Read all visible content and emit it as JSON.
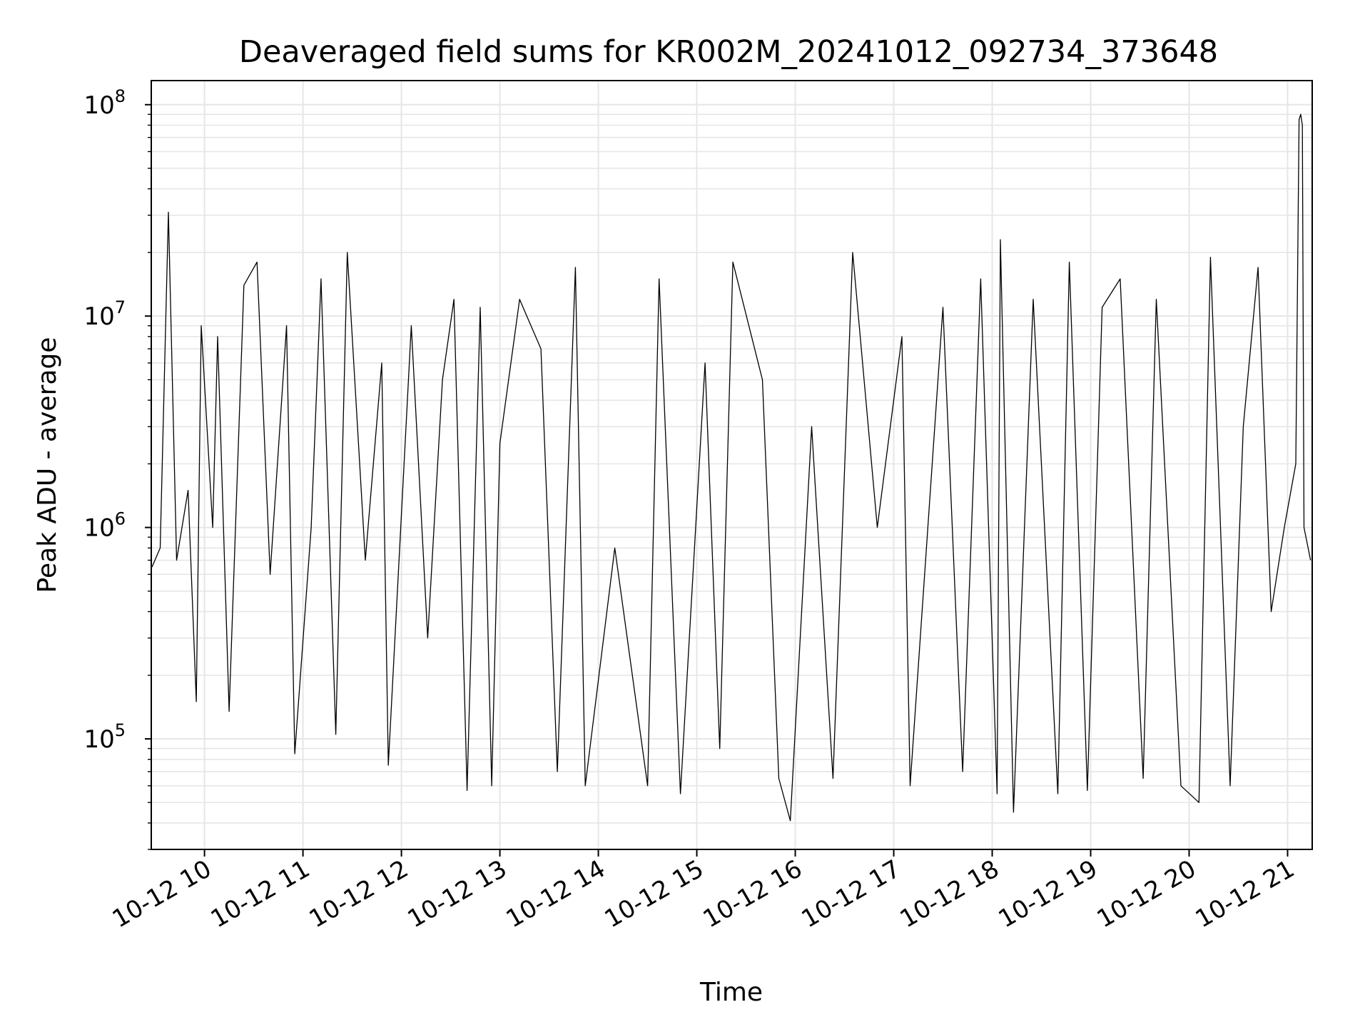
{
  "chart_data": {
    "type": "line",
    "title": "Deaveraged field sums for KR002M_20241012_092734_373648",
    "xlabel": "Time",
    "ylabel": "Peak ADU - average",
    "x_range": [
      "2024-10-12T09:27:34",
      "2024-10-12T21:15:00"
    ],
    "y_scale": "log",
    "ylim": [
      30000,
      130000000
    ],
    "grid": true,
    "line_color": "#000000",
    "grid_color": "#e6e6e6",
    "x_ticks": [
      {
        "value": "2024-10-12T10:00",
        "label": "10-12 10"
      },
      {
        "value": "2024-10-12T11:00",
        "label": "10-12 11"
      },
      {
        "value": "2024-10-12T12:00",
        "label": "10-12 12"
      },
      {
        "value": "2024-10-12T13:00",
        "label": "10-12 13"
      },
      {
        "value": "2024-10-12T14:00",
        "label": "10-12 14"
      },
      {
        "value": "2024-10-12T15:00",
        "label": "10-12 15"
      },
      {
        "value": "2024-10-12T16:00",
        "label": "10-12 16"
      },
      {
        "value": "2024-10-12T17:00",
        "label": "10-12 17"
      },
      {
        "value": "2024-10-12T18:00",
        "label": "10-12 18"
      },
      {
        "value": "2024-10-12T19:00",
        "label": "10-12 19"
      },
      {
        "value": "2024-10-12T20:00",
        "label": "10-12 20"
      },
      {
        "value": "2024-10-12T21:00",
        "label": "10-12 21"
      }
    ],
    "y_ticks": [
      {
        "value": 100000,
        "base": "10",
        "exp": "5"
      },
      {
        "value": 1000000,
        "base": "10",
        "exp": "6"
      },
      {
        "value": 10000000,
        "base": "10",
        "exp": "7"
      },
      {
        "value": 100000000,
        "base": "10",
        "exp": "8"
      }
    ],
    "series": [
      {
        "values": [
          [
            "2024-10-12T09:28",
            650000
          ],
          [
            "2024-10-12T09:33",
            800000
          ],
          [
            "2024-10-12T09:38",
            31000000
          ],
          [
            "2024-10-12T09:43",
            700000
          ],
          [
            "2024-10-12T09:50",
            1500000
          ],
          [
            "2024-10-12T09:55",
            150000
          ],
          [
            "2024-10-12T09:58",
            9000000
          ],
          [
            "2024-10-12T10:05",
            1000000
          ],
          [
            "2024-10-12T10:08",
            8000000
          ],
          [
            "2024-10-12T10:15",
            135000
          ],
          [
            "2024-10-12T10:24",
            14000000
          ],
          [
            "2024-10-12T10:32",
            18000000
          ],
          [
            "2024-10-12T10:40",
            600000
          ],
          [
            "2024-10-12T10:50",
            9000000
          ],
          [
            "2024-10-12T10:55",
            85000
          ],
          [
            "2024-10-12T11:05",
            1000000
          ],
          [
            "2024-10-12T11:11",
            15000000
          ],
          [
            "2024-10-12T11:20",
            105000
          ],
          [
            "2024-10-12T11:27",
            20000000
          ],
          [
            "2024-10-12T11:38",
            700000
          ],
          [
            "2024-10-12T11:48",
            6000000
          ],
          [
            "2024-10-12T11:52",
            75000
          ],
          [
            "2024-10-12T12:06",
            9000000
          ],
          [
            "2024-10-12T12:16",
            300000
          ],
          [
            "2024-10-12T12:25",
            5000000
          ],
          [
            "2024-10-12T12:32",
            12000000
          ],
          [
            "2024-10-12T12:40",
            57000
          ],
          [
            "2024-10-12T12:48",
            11000000
          ],
          [
            "2024-10-12T12:55",
            60000
          ],
          [
            "2024-10-12T13:00",
            2500000
          ],
          [
            "2024-10-12T13:12",
            12000000
          ],
          [
            "2024-10-12T13:25",
            7000000
          ],
          [
            "2024-10-12T13:35",
            70000
          ],
          [
            "2024-10-12T13:46",
            17000000
          ],
          [
            "2024-10-12T13:52",
            60000
          ],
          [
            "2024-10-12T14:10",
            800000
          ],
          [
            "2024-10-12T14:30",
            60000
          ],
          [
            "2024-10-12T14:37",
            15000000
          ],
          [
            "2024-10-12T14:50",
            55000
          ],
          [
            "2024-10-12T15:05",
            6000000
          ],
          [
            "2024-10-12T15:14",
            90000
          ],
          [
            "2024-10-12T15:22",
            18000000
          ],
          [
            "2024-10-12T15:40",
            5000000
          ],
          [
            "2024-10-12T15:50",
            65000
          ],
          [
            "2024-10-12T15:57",
            41000
          ],
          [
            "2024-10-12T16:10",
            3000000
          ],
          [
            "2024-10-12T16:23",
            65000
          ],
          [
            "2024-10-12T16:35",
            20000000
          ],
          [
            "2024-10-12T16:50",
            1000000
          ],
          [
            "2024-10-12T17:05",
            8000000
          ],
          [
            "2024-10-12T17:10",
            60000
          ],
          [
            "2024-10-12T17:30",
            11000000
          ],
          [
            "2024-10-12T17:42",
            70000
          ],
          [
            "2024-10-12T17:53",
            15000000
          ],
          [
            "2024-10-12T18:03",
            55000
          ],
          [
            "2024-10-12T18:05",
            23000000
          ],
          [
            "2024-10-12T18:13",
            45000
          ],
          [
            "2024-10-12T18:25",
            12000000
          ],
          [
            "2024-10-12T18:40",
            55000
          ],
          [
            "2024-10-12T18:47",
            18000000
          ],
          [
            "2024-10-12T18:58",
            57000
          ],
          [
            "2024-10-12T19:07",
            11000000
          ],
          [
            "2024-10-12T19:18",
            15000000
          ],
          [
            "2024-10-12T19:32",
            65000
          ],
          [
            "2024-10-12T19:40",
            12000000
          ],
          [
            "2024-10-12T19:55",
            60000
          ],
          [
            "2024-10-12T20:06",
            50000
          ],
          [
            "2024-10-12T20:13",
            19000000
          ],
          [
            "2024-10-12T20:25",
            60000
          ],
          [
            "2024-10-12T20:33",
            3000000
          ],
          [
            "2024-10-12T20:42",
            17000000
          ],
          [
            "2024-10-12T20:50",
            400000
          ],
          [
            "2024-10-12T20:58",
            1000000
          ],
          [
            "2024-10-12T21:05",
            2000000
          ],
          [
            "2024-10-12T21:07",
            85000000
          ],
          [
            "2024-10-12T21:08",
            90000000
          ],
          [
            "2024-10-12T21:09",
            80000000
          ],
          [
            "2024-10-12T21:10",
            1000000
          ],
          [
            "2024-10-12T21:14",
            700000
          ]
        ]
      }
    ]
  }
}
